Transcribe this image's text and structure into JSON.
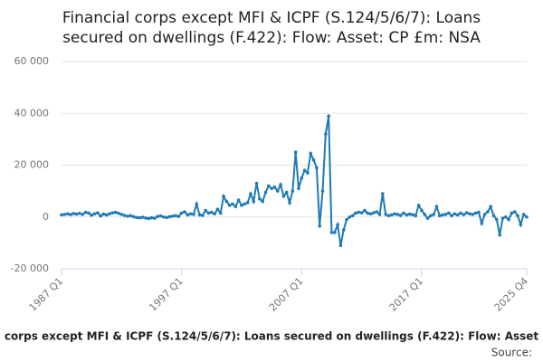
{
  "chart_data": {
    "type": "line",
    "title": [
      "Financial corps except MFI & ICPF (S.124/5/6/7): Loans",
      "secured on dwellings (F.422): Flow: Asset: CP £m: NSA"
    ],
    "footer": "corps except MFI & ICPF (S.124/5/6/7): Loans secured on dwellings (F.422): Flow: Asset",
    "source": "Source:",
    "categories": [
      "1987 Q1",
      null,
      null,
      null,
      null,
      null,
      null,
      null,
      null,
      null,
      null,
      null,
      null,
      null,
      null,
      null,
      null,
      null,
      null,
      null,
      null,
      null,
      null,
      null,
      null,
      null,
      null,
      null,
      null,
      null,
      null,
      null,
      null,
      null,
      null,
      null,
      null,
      null,
      null,
      null,
      "1997 Q1",
      null,
      null,
      null,
      null,
      null,
      null,
      null,
      null,
      null,
      null,
      null,
      null,
      null,
      null,
      null,
      null,
      null,
      null,
      null,
      null,
      null,
      null,
      null,
      null,
      null,
      null,
      null,
      null,
      null,
      null,
      null,
      null,
      null,
      null,
      null,
      null,
      null,
      null,
      null,
      "2007 Q1",
      null,
      null,
      null,
      null,
      null,
      null,
      null,
      null,
      null,
      null,
      null,
      null,
      null,
      null,
      null,
      null,
      null,
      null,
      null,
      null,
      null,
      null,
      null,
      null,
      null,
      null,
      null,
      null,
      null,
      null,
      null,
      null,
      null,
      null,
      null,
      null,
      null,
      null,
      null,
      "2017 Q1",
      null,
      null,
      null,
      null,
      null,
      null,
      null,
      null,
      null,
      null,
      null,
      null,
      null,
      null,
      null,
      null,
      null,
      null,
      null,
      null,
      null,
      null,
      null,
      null,
      null,
      null,
      null,
      null,
      null,
      null,
      null,
      null,
      null,
      null,
      "2025 Q4"
    ],
    "series": [
      {
        "color": "#1f7ab5",
        "values": [
          800,
          1000,
          1200,
          900,
          1300,
          1100,
          1400,
          1000,
          1800,
          1500,
          700,
          1200,
          1600,
          400,
          1100,
          800,
          1200,
          1600,
          1800,
          1400,
          1000,
          600,
          300,
          500,
          100,
          -200,
          -300,
          -100,
          -400,
          -600,
          -300,
          -500,
          200,
          400,
          0,
          -200,
          100,
          300,
          500,
          200,
          1500,
          2000,
          800,
          1200,
          1000,
          5000,
          800,
          600,
          2500,
          1500,
          1800,
          1200,
          3000,
          1500,
          8000,
          6000,
          4500,
          5000,
          4000,
          6500,
          4500,
          5000,
          5500,
          9000,
          6000,
          13000,
          7000,
          6000,
          9500,
          12000,
          11000,
          11500,
          10000,
          12500,
          8000,
          9500,
          5500,
          10000,
          25000,
          11000,
          15000,
          18000,
          17000,
          24500,
          22000,
          19000,
          -3500,
          10000,
          32000,
          39000,
          -6000,
          -6000,
          -3000,
          -11000,
          -5000,
          -1000,
          0,
          500,
          1500,
          1800,
          1600,
          2500,
          1500,
          1200,
          1600,
          2000,
          1000,
          9000,
          1000,
          500,
          800,
          1200,
          1000,
          600,
          1500,
          800,
          1100,
          900,
          500,
          4500,
          2500,
          1000,
          -500,
          500,
          1000,
          4000,
          500,
          800,
          1000,
          1500,
          500,
          1200,
          800,
          1500,
          900,
          1600,
          1200,
          1000,
          1500,
          1800,
          -2500,
          1000,
          2000,
          4000,
          500,
          -1000,
          -7000,
          -500,
          0,
          -1000,
          1500,
          2000,
          500,
          -3000,
          1000,
          0
        ]
      }
    ],
    "ylim": [
      -20000,
      60000
    ],
    "yticks": [
      {
        "value": -20000,
        "label": "-20 000"
      },
      0,
      {
        "value": 20000,
        "label": "20 000"
      },
      {
        "value": 40000,
        "label": "40 000"
      },
      {
        "value": 60000,
        "label": "60 000"
      }
    ],
    "grid": true
  }
}
